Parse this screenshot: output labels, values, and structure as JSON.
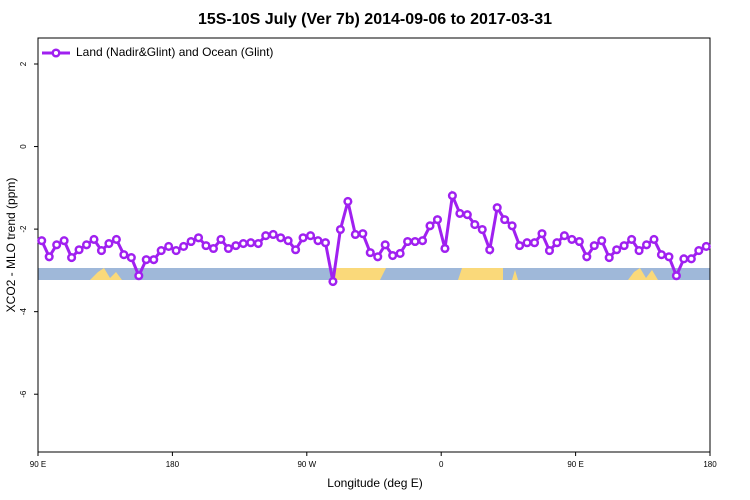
{
  "chart_data": {
    "type": "line",
    "title": "15S-10S July (Ver 7b)   2014-09-06 to 2017-03-31",
    "x_label": "Longitude (deg E)",
    "y_label": "XCO2 - MLO trend (ppm)",
    "legend": "top-left",
    "xlim": [
      90,
      540
    ],
    "ylim": [
      -7.4,
      2.63
    ],
    "xticks": [
      {
        "value": 90,
        "label": "90 E"
      },
      {
        "value": 180,
        "label": "180"
      },
      {
        "value": 270,
        "label": "90 W"
      },
      {
        "value": 360,
        "label": "0"
      },
      {
        "value": 450,
        "label": "90 E"
      },
      {
        "value": 540,
        "label": "180"
      }
    ],
    "yticks": [
      -6,
      -4,
      -2,
      0,
      2
    ],
    "x": [
      92.5,
      97.5,
      102.5,
      107.5,
      112.5,
      117.5,
      122.5,
      127.5,
      132.5,
      137.5,
      142.5,
      147.5,
      152.5,
      157.5,
      162.5,
      167.5,
      172.5,
      177.5,
      182.5,
      187.5,
      192.5,
      197.5,
      202.5,
      207.5,
      212.5,
      217.5,
      222.5,
      227.5,
      232.5,
      237.5,
      242.5,
      247.5,
      252.5,
      257.5,
      262.5,
      267.5,
      272.5,
      277.5,
      282.5,
      287.5,
      292.5,
      297.5,
      302.5,
      307.5,
      312.5,
      317.5,
      322.5,
      327.5,
      332.5,
      337.5,
      342.5,
      347.5,
      352.5,
      357.5,
      362.5,
      367.5,
      372.5,
      377.5,
      382.5,
      387.5,
      392.5,
      397.5,
      402.5,
      407.5,
      412.5,
      417.5,
      422.5,
      427.5,
      432.5,
      437.5,
      442.5,
      447.5,
      452.5,
      457.5,
      462.5,
      467.5,
      472.5,
      477.5,
      482.5,
      487.5,
      492.5,
      497.5,
      502.5,
      507.5,
      512.5,
      517.5,
      522.5,
      527.5,
      532.5,
      537.5
    ],
    "series": [
      {
        "name": "Land (Nadir&Glint) and Ocean (Glint)",
        "color": "#a020f0",
        "values": [
          -2.28,
          -2.67,
          -2.38,
          -2.28,
          -2.69,
          -2.5,
          -2.38,
          -2.25,
          -2.52,
          -2.35,
          -2.25,
          -2.62,
          -2.69,
          -3.13,
          -2.74,
          -2.74,
          -2.52,
          -2.42,
          -2.52,
          -2.42,
          -2.3,
          -2.21,
          -2.4,
          -2.47,
          -2.25,
          -2.47,
          -2.4,
          -2.35,
          -2.33,
          -2.35,
          -2.16,
          -2.13,
          -2.21,
          -2.28,
          -2.5,
          -2.21,
          -2.16,
          -2.28,
          -2.33,
          -3.27,
          -2.01,
          -1.33,
          -2.13,
          -2.11,
          -2.57,
          -2.67,
          -2.38,
          -2.64,
          -2.59,
          -2.3,
          -2.3,
          -2.28,
          -1.92,
          -1.77,
          -2.47,
          -1.19,
          -1.62,
          -1.65,
          -1.89,
          -2.01,
          -2.5,
          -1.48,
          -1.77,
          -1.92,
          -2.4,
          -2.33,
          -2.33,
          -2.11,
          -2.52,
          -2.33,
          -2.16,
          -2.25,
          -2.3,
          -2.67,
          -2.4,
          -2.28,
          -2.69,
          -2.5,
          -2.4,
          -2.25,
          -2.52,
          -2.38,
          -2.25,
          -2.62,
          -2.67,
          -3.13,
          -2.72,
          -2.72,
          -2.52,
          -2.42
        ]
      }
    ]
  }
}
